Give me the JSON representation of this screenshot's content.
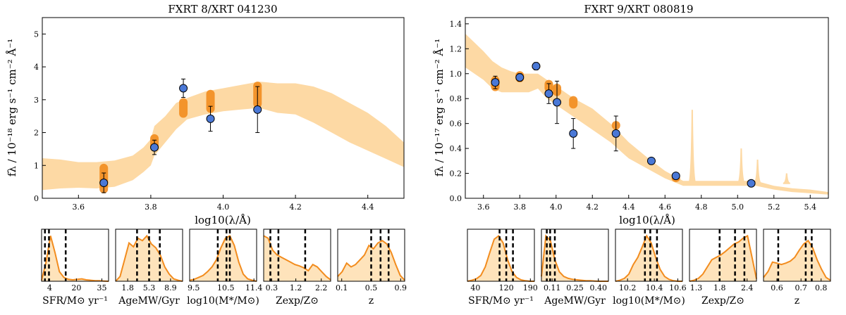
{
  "chart_data": [
    {
      "type": "sed",
      "title": "FXRT 8/XRT 041230",
      "xlabel": "log10(λ/Å)",
      "ylabel": "fλ / 10⁻¹⁸ erg s⁻¹ cm⁻² Å⁻¹",
      "xlim": [
        3.5,
        4.5
      ],
      "ylim": [
        0,
        5.5
      ],
      "xticks": [
        3.6,
        3.8,
        4.0,
        4.2,
        4.4
      ],
      "yticks": [
        0,
        1,
        2,
        3,
        4,
        5
      ],
      "observed": [
        {
          "x": 3.67,
          "y": 0.47,
          "err": 0.3
        },
        {
          "x": 3.81,
          "y": 1.55,
          "err": 0.22
        },
        {
          "x": 3.89,
          "y": 3.35,
          "err": 0.28
        },
        {
          "x": 3.965,
          "y": 2.42,
          "err": 0.38
        },
        {
          "x": 4.095,
          "y": 2.7,
          "err": 0.7
        }
      ],
      "model_photometry": [
        {
          "x": 3.67,
          "ymin": 0.15,
          "ymax": 1.05
        },
        {
          "x": 3.81,
          "ymin": 1.45,
          "ymax": 1.95
        },
        {
          "x": 3.89,
          "ymin": 2.45,
          "ymax": 3.05
        },
        {
          "x": 3.965,
          "ymin": 2.6,
          "ymax": 3.3
        },
        {
          "x": 4.095,
          "ymin": 2.75,
          "ymax": 3.55
        }
      ],
      "model_band": {
        "x": [
          3.5,
          3.55,
          3.6,
          3.65,
          3.7,
          3.75,
          3.78,
          3.8,
          3.81,
          3.84,
          3.87,
          3.9,
          3.95,
          4.0,
          4.05,
          4.1,
          4.15,
          4.2,
          4.25,
          4.3,
          4.35,
          4.4,
          4.45,
          4.5
        ],
        "upper": [
          1.22,
          1.18,
          1.1,
          1.1,
          1.15,
          1.3,
          1.55,
          1.8,
          2.2,
          2.5,
          2.9,
          3.05,
          3.25,
          3.35,
          3.45,
          3.55,
          3.5,
          3.5,
          3.4,
          3.2,
          2.9,
          2.6,
          2.2,
          1.7
        ],
        "lower": [
          0.25,
          0.3,
          0.32,
          0.3,
          0.35,
          0.55,
          0.8,
          1.0,
          1.3,
          1.7,
          2.1,
          2.4,
          2.55,
          2.65,
          2.7,
          2.75,
          2.6,
          2.55,
          2.3,
          2.0,
          1.7,
          1.45,
          1.2,
          0.95
        ]
      },
      "posteriors": [
        {
          "label": "SFR/M⊙ yr⁻¹",
          "ticks": [
            "4",
            "20",
            "35"
          ],
          "tick_pos": [
            0.12,
            0.52,
            0.9
          ],
          "lines": [
            0.05,
            0.11,
            0.36
          ],
          "curve": [
            0.02,
            0.4,
            0.95,
            0.6,
            0.2,
            0.08,
            0.04,
            0.03,
            0.04,
            0.05,
            0.03,
            0.02,
            0.01,
            0.01,
            0.005,
            0.0
          ]
        },
        {
          "label": "AgeMW/Gyr",
          "ticks": [
            "1.8",
            "5.3",
            "8.9"
          ],
          "tick_pos": [
            0.18,
            0.5,
            0.82
          ],
          "lines": [
            0.32,
            0.5,
            0.66
          ],
          "curve": [
            0.0,
            0.1,
            0.45,
            0.8,
            0.72,
            0.9,
            0.85,
            0.95,
            0.78,
            0.7,
            0.55,
            0.3,
            0.15,
            0.05,
            0.02,
            0.0
          ]
        },
        {
          "label": "log10(M*/M⊙)",
          "ticks": [
            "9.5",
            "10.5",
            "11.4"
          ],
          "tick_pos": [
            0.06,
            0.54,
            0.96
          ],
          "lines": [
            0.42,
            0.55,
            0.6
          ],
          "curve": [
            0.02,
            0.04,
            0.08,
            0.12,
            0.2,
            0.3,
            0.45,
            0.7,
            0.9,
            0.95,
            0.75,
            0.4,
            0.15,
            0.05,
            0.02,
            0.0
          ]
        },
        {
          "label": "Zexp/Z⊙",
          "ticks": [
            "0.3",
            "1.2",
            "2.2"
          ],
          "tick_pos": [
            0.12,
            0.48,
            0.86
          ],
          "lines": [
            0.1,
            0.22,
            0.62
          ],
          "curve": [
            0.95,
            0.9,
            0.65,
            0.55,
            0.5,
            0.45,
            0.4,
            0.35,
            0.32,
            0.28,
            0.22,
            0.35,
            0.3,
            0.2,
            0.1,
            0.03
          ]
        },
        {
          "label": "z",
          "ticks": [
            "0.1",
            "0.5",
            "0.9"
          ],
          "tick_pos": [
            0.06,
            0.5,
            0.94
          ],
          "lines": [
            0.5,
            0.64,
            0.76
          ],
          "curve": [
            0.1,
            0.2,
            0.38,
            0.3,
            0.35,
            0.45,
            0.55,
            0.75,
            0.68,
            0.8,
            0.85,
            0.78,
            0.6,
            0.35,
            0.12,
            0.02
          ]
        }
      ]
    },
    {
      "type": "sed",
      "title": "FXRT 9/XRT 080819",
      "xlabel": "log10(λ/Å)",
      "ylabel": "fλ / 10⁻¹⁷ erg s⁻¹ cm⁻² Å⁻¹",
      "xlim": [
        3.5,
        5.5
      ],
      "ylim": [
        0,
        1.45
      ],
      "xticks": [
        3.6,
        3.8,
        4.0,
        4.2,
        4.4,
        4.6,
        4.8,
        5.0,
        5.2,
        5.4
      ],
      "yticks": [
        0.0,
        0.2,
        0.4,
        0.6,
        0.8,
        1.0,
        1.2,
        1.4
      ],
      "observed": [
        {
          "x": 3.665,
          "y": 0.93,
          "err": 0.05
        },
        {
          "x": 3.8,
          "y": 0.97,
          "err": 0.03
        },
        {
          "x": 3.89,
          "y": 1.06,
          "err": 0.03
        },
        {
          "x": 3.96,
          "y": 0.84,
          "err": 0.08
        },
        {
          "x": 4.005,
          "y": 0.77,
          "err": 0.17
        },
        {
          "x": 4.095,
          "y": 0.52,
          "err": 0.12
        },
        {
          "x": 4.33,
          "y": 0.52,
          "err": 0.14
        },
        {
          "x": 4.525,
          "y": 0.3,
          "err": 0.015
        },
        {
          "x": 4.66,
          "y": 0.18,
          "err": 0.015
        },
        {
          "x": 5.075,
          "y": 0.12,
          "err": 0.01
        }
      ],
      "model_photometry": [
        {
          "x": 3.665,
          "ymin": 0.86,
          "ymax": 0.98
        },
        {
          "x": 3.8,
          "ymin": 0.93,
          "ymax": 1.02
        },
        {
          "x": 3.89,
          "ymin": 1.03,
          "ymax": 1.08
        },
        {
          "x": 3.96,
          "ymin": 0.85,
          "ymax": 0.95
        },
        {
          "x": 4.005,
          "ymin": 0.82,
          "ymax": 0.92
        },
        {
          "x": 4.095,
          "ymin": 0.72,
          "ymax": 0.82
        },
        {
          "x": 4.33,
          "ymin": 0.55,
          "ymax": 0.62
        },
        {
          "x": 4.525,
          "ymin": 0.28,
          "ymax": 0.32
        },
        {
          "x": 4.66,
          "ymin": 0.13,
          "ymax": 0.19
        },
        {
          "x": 5.075,
          "ymin": 0.11,
          "ymax": 0.15
        }
      ],
      "model_band": {
        "x": [
          3.5,
          3.55,
          3.6,
          3.65,
          3.7,
          3.75,
          3.8,
          3.85,
          3.9,
          3.95,
          4.0,
          4.1,
          4.2,
          4.3,
          4.4,
          4.5,
          4.6,
          4.7,
          4.8,
          4.9,
          5.0,
          5.1,
          5.2,
          5.3,
          5.4,
          5.5
        ],
        "upper": [
          1.32,
          1.25,
          1.18,
          1.1,
          1.05,
          1.02,
          1.0,
          1.0,
          1.0,
          0.95,
          0.9,
          0.8,
          0.72,
          0.6,
          0.45,
          0.33,
          0.22,
          0.14,
          0.14,
          0.14,
          0.14,
          0.14,
          0.1,
          0.08,
          0.07,
          0.05
        ],
        "lower": [
          1.05,
          1.0,
          0.95,
          0.88,
          0.85,
          0.85,
          0.85,
          0.85,
          0.88,
          0.8,
          0.75,
          0.65,
          0.55,
          0.45,
          0.32,
          0.24,
          0.16,
          0.1,
          0.1,
          0.1,
          0.1,
          0.1,
          0.07,
          0.05,
          0.04,
          0.03
        ]
      },
      "emission_lines": [
        {
          "x": 4.75,
          "peak": 0.71
        },
        {
          "x": 5.02,
          "peak": 0.4
        },
        {
          "x": 5.11,
          "peak": 0.31
        },
        {
          "x": 5.27,
          "peak": 0.2
        }
      ],
      "posteriors": [
        {
          "label": "SFR/M⊙ yr⁻¹",
          "ticks": [
            "40",
            "120",
            "190"
          ],
          "tick_pos": [
            0.12,
            0.58,
            0.94
          ],
          "lines": [
            0.48,
            0.58,
            0.68
          ],
          "curve": [
            0.0,
            0.02,
            0.05,
            0.12,
            0.3,
            0.6,
            0.88,
            0.95,
            0.8,
            0.45,
            0.2,
            0.08,
            0.03,
            0.01,
            0.0,
            0.0
          ]
        },
        {
          "label": "AgeMW/Gyr",
          "ticks": [
            "0.11",
            "0.25",
            "0.40"
          ],
          "tick_pos": [
            0.16,
            0.5,
            0.85
          ],
          "lines": [
            0.08,
            0.13,
            0.2
          ],
          "curve": [
            0.1,
            0.95,
            0.85,
            0.45,
            0.2,
            0.1,
            0.06,
            0.04,
            0.03,
            0.02,
            0.01,
            0.01,
            0.005,
            0.0,
            0.0,
            0.0
          ]
        },
        {
          "label": "log10(M*/M⊙)",
          "ticks": [
            "10.2",
            "10.4",
            "10.6"
          ],
          "tick_pos": [
            0.18,
            0.58,
            0.93
          ],
          "lines": [
            0.44,
            0.52,
            0.62
          ],
          "curve": [
            0.0,
            0.02,
            0.06,
            0.15,
            0.35,
            0.5,
            0.72,
            0.95,
            0.8,
            0.5,
            0.25,
            0.1,
            0.04,
            0.01,
            0.0,
            0.0
          ]
        },
        {
          "label": "Zexp/Z⊙",
          "ticks": [
            "1.3",
            "1.8",
            "2.4"
          ],
          "tick_pos": [
            0.1,
            0.45,
            0.86
          ],
          "lines": [
            0.45,
            0.68,
            0.82
          ],
          "curve": [
            0.0,
            0.02,
            0.06,
            0.15,
            0.3,
            0.45,
            0.5,
            0.55,
            0.62,
            0.7,
            0.78,
            0.82,
            0.9,
            0.95,
            0.5,
            0.05
          ]
        },
        {
          "label": "z",
          "ticks": [
            "0.6",
            "0.7",
            "0.8"
          ],
          "tick_pos": [
            0.2,
            0.56,
            0.86
          ],
          "lines": [
            0.22,
            0.63,
            0.72
          ],
          "curve": [
            0.08,
            0.2,
            0.4,
            0.38,
            0.35,
            0.38,
            0.42,
            0.5,
            0.65,
            0.78,
            0.85,
            0.7,
            0.45,
            0.25,
            0.08,
            0.02
          ]
        }
      ]
    }
  ]
}
